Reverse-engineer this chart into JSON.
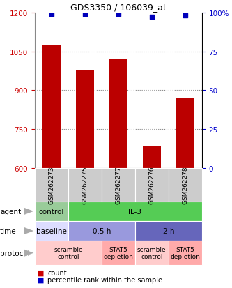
{
  "title": "GDS3350 / 106039_at",
  "samples": [
    "GSM262273",
    "GSM262275",
    "GSM262277",
    "GSM262276",
    "GSM262278"
  ],
  "bar_values": [
    1075,
    975,
    1020,
    685,
    870
  ],
  "percentile_values": [
    99,
    99,
    99,
    97,
    98
  ],
  "y_min": 600,
  "y_max": 1200,
  "y_ticks_left": [
    600,
    750,
    900,
    1050,
    1200
  ],
  "y_ticks_right_vals": [
    0,
    25,
    50,
    75,
    100
  ],
  "y_ticks_right_labels": [
    "0",
    "25",
    "50",
    "75",
    "100%"
  ],
  "bar_color": "#bb0000",
  "dot_color": "#0000bb",
  "grid_lines": [
    750,
    900,
    1050
  ],
  "grid_color": "#888888",
  "agent_cells": [
    {
      "text": "control",
      "span": 1,
      "color": "#99cc99"
    },
    {
      "text": "IL-3",
      "span": 4,
      "color": "#55cc55"
    }
  ],
  "time_cells": [
    {
      "text": "baseline",
      "span": 1,
      "color": "#ddddff"
    },
    {
      "text": "0.5 h",
      "span": 2,
      "color": "#9999dd"
    },
    {
      "text": "2 h",
      "span": 2,
      "color": "#6666bb"
    }
  ],
  "protocol_cells": [
    {
      "text": "scramble\ncontrol",
      "span": 2,
      "color": "#ffcccc"
    },
    {
      "text": "STAT5\ndepletion",
      "span": 1,
      "color": "#ffaaaa"
    },
    {
      "text": "scramble\ncontrol",
      "span": 1,
      "color": "#ffcccc"
    },
    {
      "text": "STAT5\ndepletion",
      "span": 1,
      "color": "#ffaaaa"
    }
  ],
  "sample_bg_color": "#cccccc",
  "row_labels": [
    "agent",
    "time",
    "protocol"
  ],
  "left_tick_color": "#cc0000",
  "right_tick_color": "#0000cc",
  "legend_count_color": "#cc0000",
  "legend_dot_color": "#0000cc"
}
